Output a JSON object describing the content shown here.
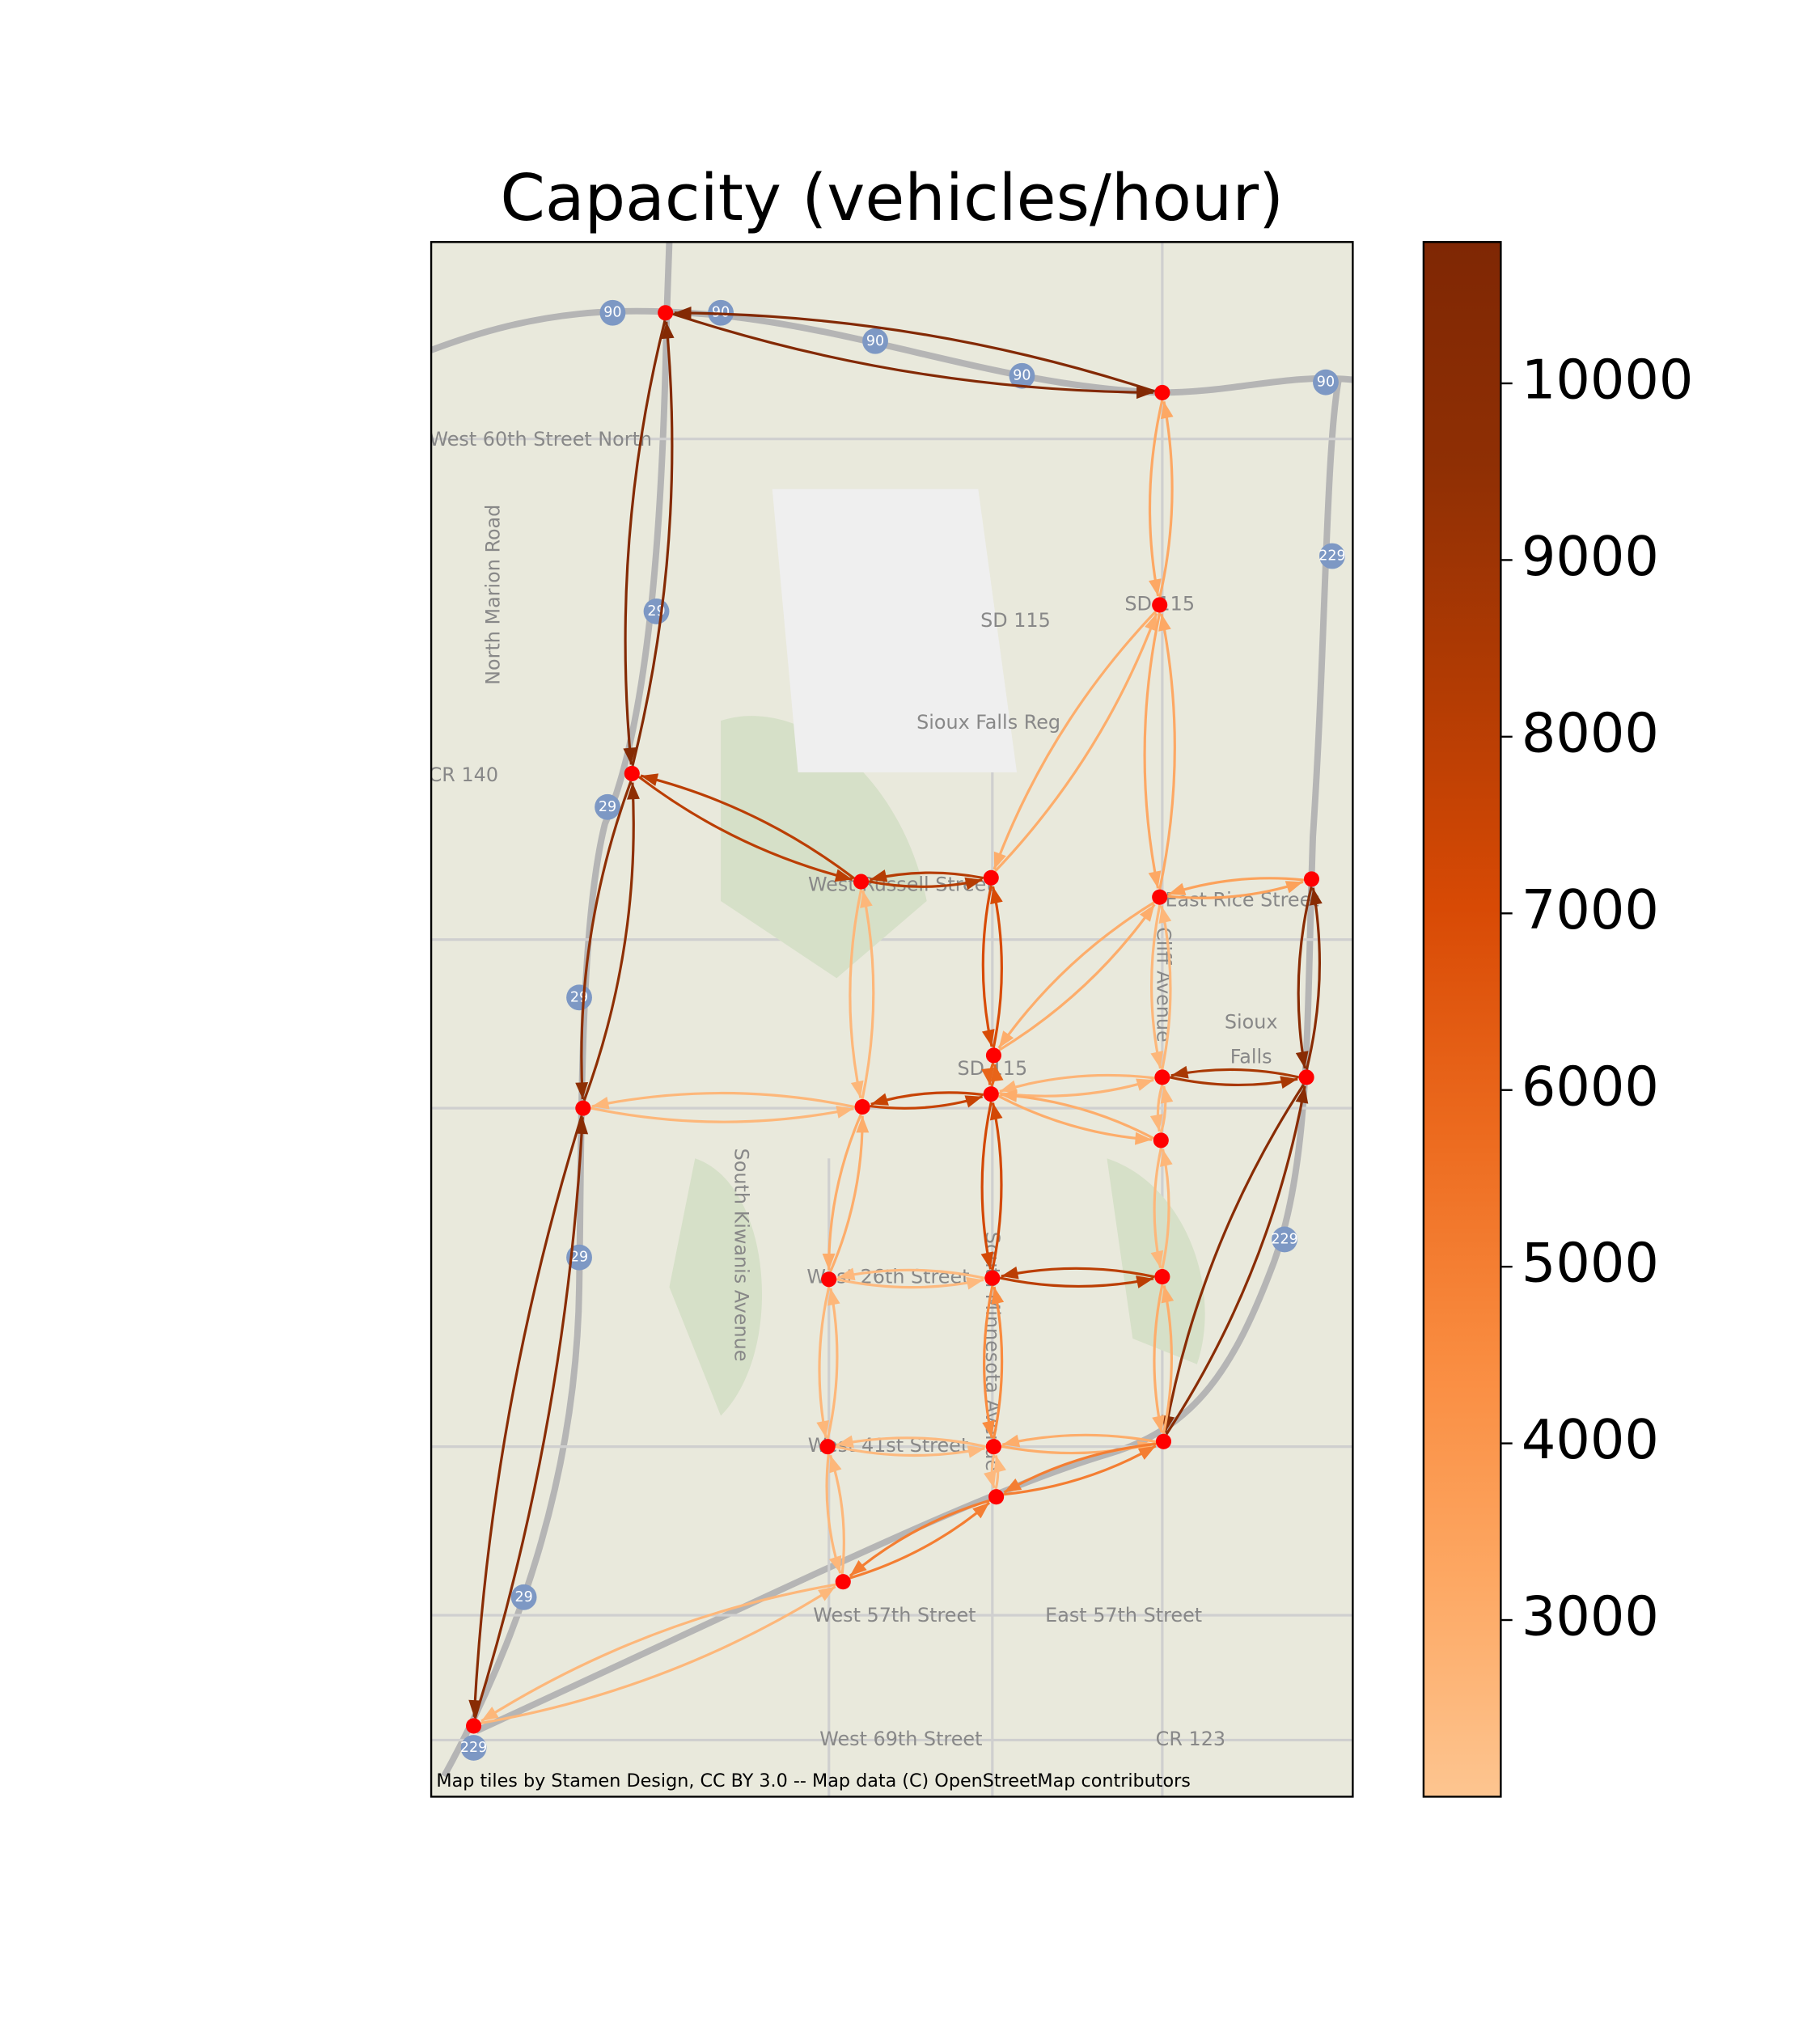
{
  "title": "Capacity (vehicles/hour)",
  "colorbar": {
    "lim": [
      2000,
      10800
    ],
    "ticks": [
      3000,
      4000,
      5000,
      6000,
      7000,
      8000,
      9000,
      10000
    ],
    "colormap": [
      "#fdc590",
      "#fda762",
      "#f98b3f",
      "#ec6a1e",
      "#d84a05",
      "#b23b03",
      "#8f2f04",
      "#7f2704"
    ]
  },
  "edges": [
    [
      1,
      2,
      10500
    ],
    [
      1,
      3,
      10400
    ],
    [
      2,
      4,
      3200
    ],
    [
      3,
      6,
      8000
    ],
    [
      3,
      12,
      9600
    ],
    [
      4,
      5,
      3000
    ],
    [
      4,
      8,
      3200
    ],
    [
      5,
      6,
      8200
    ],
    [
      5,
      9,
      7000
    ],
    [
      6,
      13,
      2600
    ],
    [
      7,
      8,
      3500
    ],
    [
      7,
      15,
      10000
    ],
    [
      8,
      9,
      3000
    ],
    [
      8,
      11,
      2600
    ],
    [
      9,
      10,
      6000
    ],
    [
      10,
      11,
      2700
    ],
    [
      10,
      13,
      7600
    ],
    [
      10,
      14,
      3000
    ],
    [
      10,
      17,
      7200
    ],
    [
      11,
      14,
      2600
    ],
    [
      11,
      15,
      8600
    ],
    [
      12,
      13,
      2600
    ],
    [
      12,
      24,
      10000
    ],
    [
      13,
      16,
      3000
    ],
    [
      14,
      18,
      2600
    ],
    [
      15,
      21,
      10000
    ],
    [
      16,
      17,
      2500
    ],
    [
      16,
      19,
      2600
    ],
    [
      17,
      18,
      8000
    ],
    [
      17,
      20,
      4500
    ],
    [
      18,
      21,
      3000
    ],
    [
      19,
      20,
      2500
    ],
    [
      19,
      23,
      2600
    ],
    [
      20,
      21,
      3000
    ],
    [
      20,
      22,
      2500
    ],
    [
      21,
      22,
      5000
    ],
    [
      22,
      23,
      5000
    ],
    [
      23,
      24,
      2600
    ]
  ],
  "map_labels": [
    "90",
    "90",
    "90",
    "90",
    "90",
    "229",
    "229",
    "229",
    "29",
    "29",
    "29",
    "29",
    "29",
    "SD 115",
    "SD 115",
    "SD 115",
    "CR 140",
    "CR 123",
    "Sioux Falls Reg",
    "West 60th Street North",
    "North Marion Road",
    "West Russell Street",
    "East Rice Street",
    "Sioux",
    "Falls",
    "South Kiwanis Avenue",
    "West 57th Street",
    "East 57th Street",
    "West 69th Street",
    "Cliff Avenue",
    "South Minnesota Avenue",
    "West 26th Street",
    "West 41st Street"
  ],
  "attribution": "Map tiles by Stamen Design, CC BY 3.0 -- Map data (C) OpenStreetMap contributors"
}
